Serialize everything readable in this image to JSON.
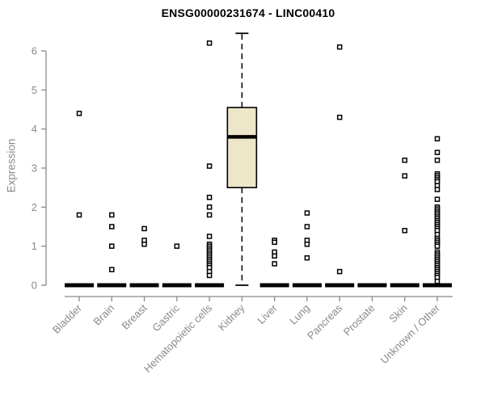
{
  "chart_data": {
    "type": "boxplot",
    "title": "ENSG00000231674 - LINC00410",
    "ylabel": "Expression",
    "xlabel": "",
    "ylim": [
      0,
      6.5
    ],
    "yticks": [
      0,
      1,
      2,
      3,
      4,
      5,
      6
    ],
    "grid": false,
    "legend": "none",
    "categories": [
      "Bladder",
      "Brain",
      "Breast",
      "Gastric",
      "Hematopoietic cells",
      "Kidney",
      "Liver",
      "Lung",
      "Pancreas",
      "Prostate",
      "Skin",
      "Unknown / Other"
    ],
    "boxes": [
      {
        "category": "Bladder",
        "q1": 0,
        "median": 0,
        "q3": 0,
        "whisker_low": 0,
        "whisker_high": 0,
        "outliers": [
          4.4,
          1.8
        ]
      },
      {
        "category": "Brain",
        "q1": 0,
        "median": 0,
        "q3": 0,
        "whisker_low": 0,
        "whisker_high": 0,
        "outliers": [
          1.8,
          1.5,
          1.0,
          0.4
        ]
      },
      {
        "category": "Breast",
        "q1": 0,
        "median": 0,
        "q3": 0,
        "whisker_low": 0,
        "whisker_high": 0,
        "outliers": [
          1.45,
          1.15,
          1.05
        ]
      },
      {
        "category": "Gastric",
        "q1": 0,
        "median": 0,
        "q3": 0,
        "whisker_low": 0,
        "whisker_high": 0,
        "outliers": [
          1.0
        ]
      },
      {
        "category": "Hematopoietic cells",
        "q1": 0,
        "median": 0,
        "q3": 0,
        "whisker_low": 0,
        "whisker_high": 0,
        "outliers": [
          6.2,
          3.05,
          2.25,
          2.0,
          1.8,
          1.25,
          1.05,
          1.0,
          0.95,
          0.9,
          0.85,
          0.8,
          0.75,
          0.7,
          0.65,
          0.6,
          0.55,
          0.5,
          0.45,
          0.35,
          0.25
        ]
      },
      {
        "category": "Kidney",
        "q1": 2.5,
        "median": 3.8,
        "q3": 4.55,
        "whisker_low": 0,
        "whisker_high": 6.45,
        "outliers": []
      },
      {
        "category": "Liver",
        "q1": 0,
        "median": 0,
        "q3": 0,
        "whisker_low": 0,
        "whisker_high": 0,
        "outliers": [
          1.15,
          1.1,
          0.85,
          0.75,
          0.55
        ]
      },
      {
        "category": "Lung",
        "q1": 0,
        "median": 0,
        "q3": 0,
        "whisker_low": 0,
        "whisker_high": 0,
        "outliers": [
          1.85,
          1.5,
          1.15,
          1.05,
          0.7
        ]
      },
      {
        "category": "Pancreas",
        "q1": 0,
        "median": 0,
        "q3": 0,
        "whisker_low": 0,
        "whisker_high": 0,
        "outliers": [
          6.1,
          4.3,
          0.35
        ]
      },
      {
        "category": "Prostate",
        "q1": 0,
        "median": 0,
        "q3": 0,
        "whisker_low": 0,
        "whisker_high": 0,
        "outliers": []
      },
      {
        "category": "Skin",
        "q1": 0,
        "median": 0,
        "q3": 0,
        "whisker_low": 0,
        "whisker_high": 0,
        "outliers": [
          3.2,
          2.8,
          1.4
        ]
      },
      {
        "category": "Unknown / Other",
        "q1": 0,
        "median": 0,
        "q3": 0,
        "whisker_low": 0,
        "whisker_high": 0,
        "outliers": [
          3.75,
          3.4,
          3.2,
          2.85,
          2.8,
          2.75,
          2.7,
          2.65,
          2.55,
          2.45,
          2.2,
          2.0,
          1.95,
          1.9,
          1.85,
          1.8,
          1.75,
          1.7,
          1.65,
          1.6,
          1.55,
          1.5,
          1.45,
          1.4,
          1.3,
          1.2,
          1.15,
          1.1,
          1.05,
          1.0,
          0.85,
          0.8,
          0.75,
          0.7,
          0.65,
          0.6,
          0.55,
          0.5,
          0.45,
          0.4,
          0.35,
          0.3,
          0.25,
          0.2,
          0.1
        ]
      }
    ],
    "colors": {
      "box_fill": "#EDE6C9",
      "box_border": "#000000",
      "median": "#000000",
      "whisker": "#000000",
      "outlier_stroke": "#000000",
      "outlier_fill": "#ffffff",
      "axis_line": "#8a8a8a",
      "tick_label": "#8a8a8a",
      "title": "#000000",
      "background": "#ffffff"
    }
  }
}
